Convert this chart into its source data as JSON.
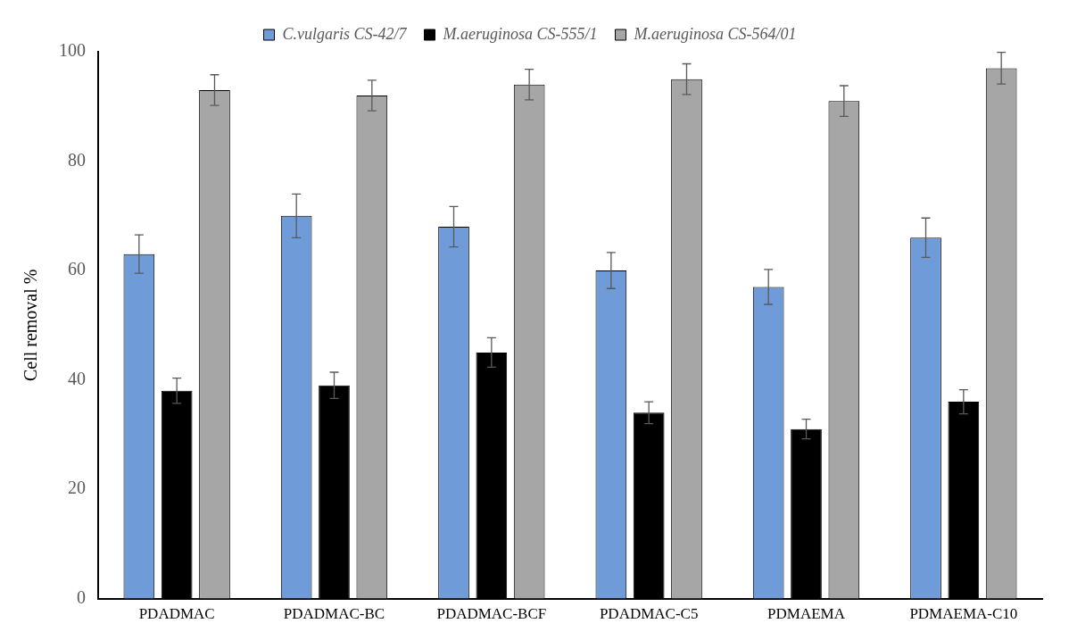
{
  "chart_data": {
    "type": "bar",
    "ylabel": "Cell removal %",
    "categories": [
      "PDADMAC",
      "PDADMAC-BC",
      "PDADMAC-BCF",
      "PDADMAC-C5",
      "PDMAEMA",
      "PDMAEMA-C10"
    ],
    "series": [
      {
        "name": "C.vulgaris CS-42/7",
        "color": "#6f9bd8",
        "values": [
          63,
          70,
          68,
          60,
          57,
          66
        ],
        "errors": [
          3.5,
          4,
          3.7,
          3.3,
          3.2,
          3.6
        ]
      },
      {
        "name": "M.aeruginosa CS-555/1",
        "color": "#000000",
        "values": [
          38,
          39,
          45,
          34,
          31,
          36
        ],
        "errors": [
          2.3,
          2.4,
          2.7,
          2,
          1.8,
          2.2
        ]
      },
      {
        "name": "M.aeruginosa CS-564/01",
        "color": "#a6a6a6",
        "values": [
          93,
          92,
          94,
          95,
          91,
          97
        ],
        "errors": [
          2.8,
          2.8,
          2.8,
          2.8,
          2.8,
          2.9
        ]
      }
    ],
    "ylim": [
      0,
      100
    ],
    "yticks": [
      0,
      20,
      40,
      60,
      80,
      100
    ],
    "grid": false,
    "legend": "top"
  }
}
